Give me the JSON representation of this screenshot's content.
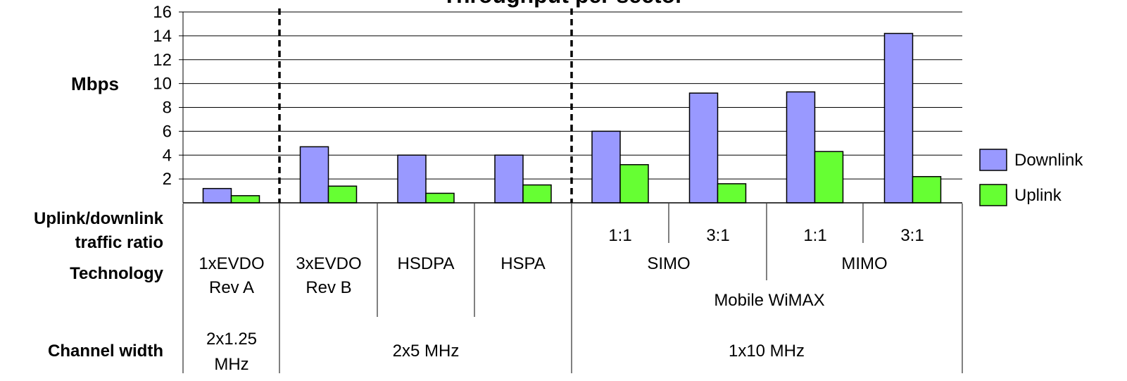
{
  "chart_data": {
    "type": "bar",
    "title": "Throughput per sector",
    "ylabel": "Mbps",
    "ylim": [
      0,
      16
    ],
    "yticks": [
      2,
      4,
      6,
      8,
      10,
      12,
      14,
      16
    ],
    "grid": true,
    "legend_position": "right",
    "categories": [
      "1xEVDO Rev A",
      "3xEVDO Rev B",
      "HSDPA",
      "HSPA",
      "SIMO 1:1",
      "SIMO 3:1",
      "MIMO 1:1",
      "MIMO 3:1"
    ],
    "series": [
      {
        "name": "Downlink",
        "color": "#9999ff",
        "values": [
          1.2,
          4.7,
          4.0,
          4.0,
          6.0,
          9.2,
          9.3,
          14.2
        ]
      },
      {
        "name": "Uplink",
        "color": "#66ff33",
        "values": [
          0.6,
          1.4,
          0.8,
          1.5,
          3.2,
          1.6,
          4.3,
          2.2
        ]
      }
    ],
    "table": {
      "row_labels": {
        "ratio": [
          "Uplink/downlink",
          "traffic ratio"
        ],
        "technology": "Technology",
        "channel": "Channel width"
      },
      "ratios": [
        "1:1",
        "3:1",
        "1:1",
        "3:1"
      ],
      "technologies": [
        [
          "1xEVDO",
          "Rev A"
        ],
        [
          "3xEVDO",
          "Rev B"
        ],
        [
          "HSDPA"
        ],
        [
          "HSPA"
        ],
        [
          "SIMO"
        ],
        [
          "MIMO"
        ]
      ],
      "technology_group": "Mobile WiMAX",
      "channels": [
        [
          "2x1.25",
          "MHz"
        ],
        [
          "2x5 MHz"
        ],
        [
          "1x10 MHz"
        ]
      ]
    }
  }
}
